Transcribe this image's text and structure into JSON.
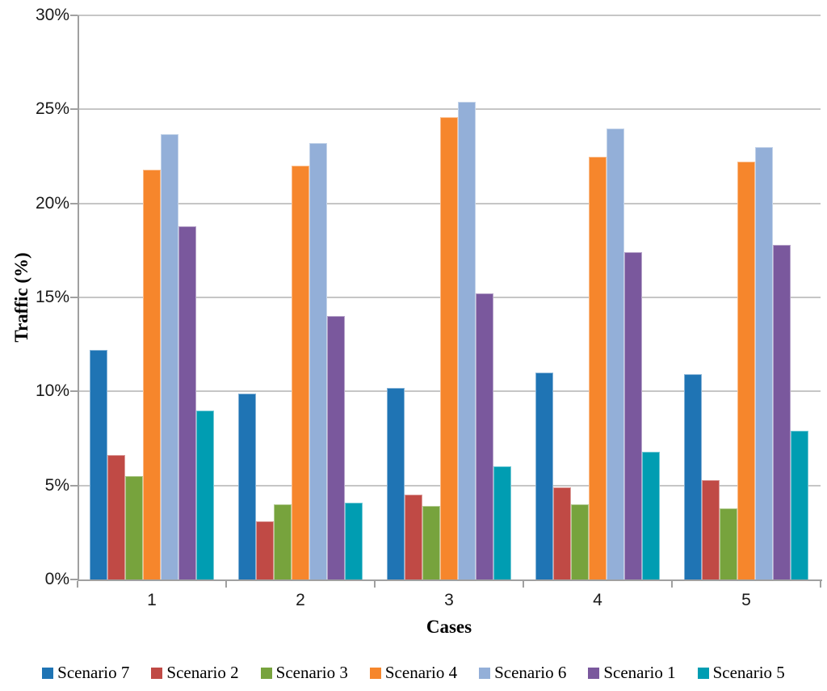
{
  "chart_data": {
    "type": "bar",
    "title": "",
    "xlabel": "Cases",
    "ylabel": "Traffic (%)",
    "categories": [
      "1",
      "2",
      "3",
      "4",
      "5"
    ],
    "series": [
      {
        "name": "Scenario 7",
        "color": "#1f74b4",
        "values": [
          12.2,
          9.9,
          10.2,
          11.0,
          10.9
        ]
      },
      {
        "name": "Scenario 2",
        "color": "#c04a45",
        "values": [
          6.6,
          3.1,
          4.5,
          4.9,
          5.3
        ]
      },
      {
        "name": "Scenario 3",
        "color": "#77a33d",
        "values": [
          5.5,
          4.0,
          3.9,
          4.0,
          3.8
        ]
      },
      {
        "name": "Scenario 4",
        "color": "#f6862c",
        "values": [
          21.8,
          22.0,
          24.6,
          22.5,
          22.2
        ]
      },
      {
        "name": "Scenario 6",
        "color": "#93afd8",
        "values": [
          23.7,
          23.2,
          25.4,
          24.0,
          23.0
        ]
      },
      {
        "name": "Scenario 1",
        "color": "#7a589d",
        "values": [
          18.8,
          14.0,
          15.2,
          17.4,
          17.8
        ]
      },
      {
        "name": "Scenario 5",
        "color": "#009db2",
        "values": [
          9.0,
          4.1,
          6.0,
          6.8,
          7.9
        ]
      }
    ],
    "ylim": [
      0,
      30
    ],
    "ytick_step": 5,
    "ytick_labels": [
      "0%",
      "5%",
      "10%",
      "15%",
      "20%",
      "25%",
      "30%"
    ],
    "grid": "horizontal",
    "legend_position": "bottom",
    "legend_order": [
      "Scenario 7",
      "Scenario 2",
      "Scenario 3",
      "Scenario 4",
      "Scenario 6",
      "Scenario 1",
      "Scenario 5"
    ],
    "colors": {
      "gridline": "#c6c6c6",
      "axis": "#a0a0a0",
      "tick_text": "#1a1a1a"
    }
  }
}
